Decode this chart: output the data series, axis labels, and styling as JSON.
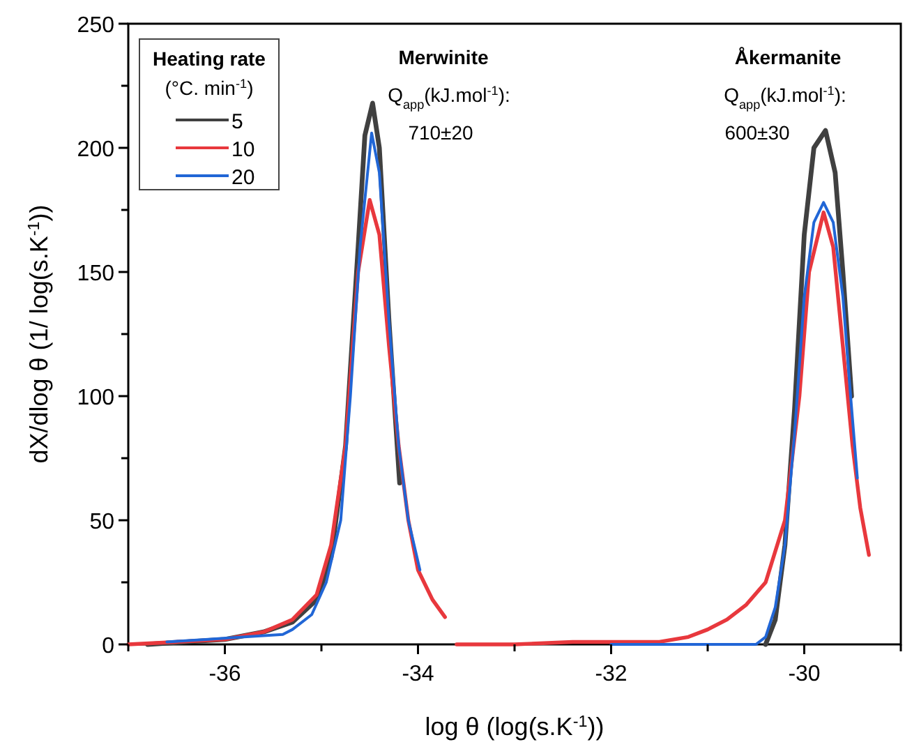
{
  "chart_data": {
    "type": "line",
    "xlabel": "log θ (log(s.K$^{-1}$))",
    "ylabel": "dX/dlog θ (1/ log(s.K$^{-1}$))",
    "legend_title": "Heating rate (°C. min$^{-1}$)",
    "legend": "top left",
    "line_style": "solid",
    "marker": "none",
    "xlim": [
      -37,
      -29
    ],
    "ylim": [
      0,
      250
    ],
    "xticks": [
      {
        "value": -37,
        "label": null
      },
      -36,
      {
        "value": -35,
        "label": null
      },
      -34,
      {
        "value": -33,
        "label": null
      },
      -32,
      {
        "value": -31,
        "label": null
      },
      -30,
      {
        "value": -29,
        "label": null
      }
    ],
    "yticks": [
      0,
      {
        "value": 25,
        "label": null
      },
      50,
      {
        "value": 75,
        "label": null
      },
      100,
      {
        "value": 125,
        "label": null
      },
      150,
      {
        "value": 175,
        "label": null
      },
      200,
      {
        "value": 225,
        "label": null
      },
      250
    ],
    "series": [
      {
        "name": "5",
        "color": "#404040",
        "x": [
          -36.8,
          -36.4,
          -36,
          -35.6,
          -35.3,
          -35.05,
          -34.9,
          -34.75,
          -34.62,
          -34.55,
          -34.47,
          -34.4,
          -34.3,
          -34.19,
          null,
          -30.4,
          -30.3,
          -30.2,
          -30.1,
          -30,
          -29.9,
          -29.78,
          -29.68,
          -29.6,
          -29.51
        ],
        "values": [
          0,
          1,
          2,
          5,
          9,
          18,
          35,
          80,
          160,
          205,
          218,
          200,
          130,
          65,
          null,
          0,
          10,
          40,
          95,
          165,
          200,
          207,
          190,
          150,
          100
        ]
      },
      {
        "name": "10",
        "color": "#e8383d",
        "x": [
          -37,
          -36.5,
          -36,
          -35.6,
          -35.3,
          -35.05,
          -34.9,
          -34.75,
          -34.62,
          -34.5,
          -34.4,
          -34.3,
          -34.2,
          -34.1,
          -34,
          -33.85,
          -33.72,
          null,
          -33.6,
          -33,
          -32.4,
          -31.5,
          -31.2,
          -31,
          -30.8,
          -30.6,
          -30.4,
          -30.2,
          -30.05,
          -29.95,
          -29.8,
          -29.7,
          -29.6,
          -29.5,
          -29.42,
          -29.33
        ],
        "values": [
          0,
          1,
          2,
          5,
          10,
          20,
          40,
          80,
          150,
          179,
          165,
          120,
          80,
          50,
          30,
          18,
          11,
          null,
          0,
          0,
          1,
          1,
          3,
          6,
          10,
          16,
          25,
          50,
          100,
          150,
          174,
          160,
          120,
          80,
          55,
          36
        ]
      },
      {
        "name": "20",
        "color": "#2166d6",
        "x": [
          -36.6,
          -36.2,
          -35.8,
          -35.4,
          -35.3,
          -35.1,
          -34.95,
          -34.8,
          -34.7,
          -34.6,
          -34.48,
          -34.4,
          -34.3,
          -34.2,
          -34.1,
          -33.98,
          null,
          -32,
          -31,
          -30.5,
          -30.4,
          -30.3,
          -30.2,
          -30.1,
          -30,
          -29.9,
          -29.8,
          -29.7,
          -29.6,
          -29.52,
          -29.45
        ],
        "values": [
          1,
          2,
          3,
          4,
          6,
          12,
          25,
          50,
          100,
          160,
          206,
          190,
          130,
          80,
          50,
          30,
          null,
          0,
          0,
          0,
          3,
          15,
          40,
          85,
          140,
          170,
          178,
          170,
          140,
          100,
          67
        ]
      }
    ],
    "annotations": [
      "Merwinite",
      "Q$_{app}$(kJ.mol$^{-1}$):",
      "710±20",
      "Åkermanite",
      "Q$_{app}$(kJ.mol$^{-1}$):",
      "600±30"
    ]
  }
}
